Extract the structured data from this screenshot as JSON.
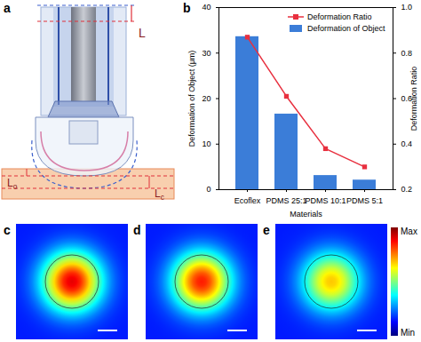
{
  "chart_data": {
    "type": "bar",
    "xlabel": "Materials",
    "ylabel": "Deformation of Object (μm)",
    "y2label": "Deformation Ratio",
    "categories": [
      "Ecoflex",
      "PDMS 25:1",
      "PDMS 10:1",
      "PDMS 5:1"
    ],
    "series": [
      {
        "name": "Deformation Ratio",
        "type": "line",
        "axis": "y2",
        "color": "#e8303f",
        "marker": "square",
        "values": [
          0.87,
          0.61,
          0.38,
          0.3
        ]
      },
      {
        "name": "Deformation of Object",
        "type": "bar",
        "color": "#3b7dd8",
        "values": [
          33.6,
          16.6,
          3.1,
          2.1
        ]
      }
    ],
    "ylim": [
      0,
      40
    ],
    "yticks": [
      0,
      10,
      20,
      30,
      40
    ],
    "y2lim": [
      0.2,
      1
    ],
    "y2ticks": [
      0.2,
      0.4,
      0.6,
      0.8,
      {
        "value": 1,
        "label": "1.0"
      }
    ],
    "legend": "top-right"
  },
  "figure": {
    "panel_labels": [
      "a",
      "b",
      "c",
      "d",
      "e"
    ],
    "diagram_labels": [
      "L",
      "Lo",
      "Lc"
    ],
    "heatmaps": [
      {
        "peak": 0.9,
        "base": 0.15
      },
      {
        "peak": 0.85,
        "base": 0.15
      },
      {
        "peak": 0.68,
        "base": 0.15
      }
    ],
    "colorbar": {
      "range": [
        0,
        1
      ],
      "min_label": "Min",
      "max_label": "Max"
    }
  }
}
